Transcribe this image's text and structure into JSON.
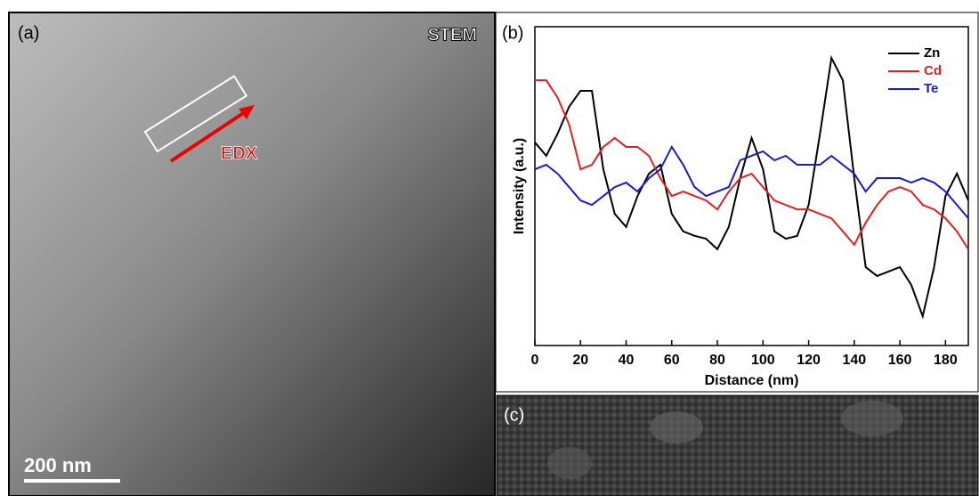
{
  "panels": {
    "a": {
      "label": "(a)",
      "mode": "STEM",
      "arrow_label": "EDX",
      "scale_bar": "200 nm"
    },
    "b": {
      "label": "(b)"
    },
    "c": {
      "label": "(c)"
    }
  },
  "chart_data": {
    "type": "line",
    "x_label": "Distance (nm)",
    "y_label": "Intensity (a.u.)",
    "x": [
      0,
      5,
      10,
      15,
      20,
      25,
      30,
      35,
      40,
      45,
      50,
      55,
      60,
      65,
      70,
      75,
      80,
      85,
      90,
      95,
      100,
      105,
      110,
      115,
      120,
      125,
      130,
      135,
      140,
      145,
      150,
      155,
      160,
      165,
      170,
      175,
      180,
      185,
      190
    ],
    "series": [
      {
        "name": "Zn",
        "color": "#000000",
        "values": [
          63.7,
          59.5,
          66.5,
          74.9,
          79.9,
          79.9,
          55.3,
          41.3,
          37.2,
          46.9,
          53.9,
          56.7,
          41.3,
          35.8,
          34.4,
          33.5,
          30.2,
          37.2,
          52.5,
          65.1,
          55.3,
          35.8,
          33.5,
          34.4,
          44.1,
          66.5,
          90.2,
          83.2,
          52.5,
          24.6,
          21.8,
          23.2,
          24.6,
          19.0,
          9.2,
          24.6,
          46.9,
          53.9,
          45.5
        ]
      },
      {
        "name": "Cd",
        "color": "#e02020",
        "values": [
          83.2,
          83.2,
          77.7,
          69.3,
          55.3,
          56.7,
          62.3,
          65.1,
          62.3,
          62.3,
          59.5,
          52.5,
          46.9,
          48.3,
          46.9,
          45.5,
          42.7,
          48.3,
          52.5,
          53.9,
          49.7,
          45.5,
          44.1,
          42.7,
          42.7,
          41.3,
          39.9,
          35.8,
          31.6,
          38.5,
          44.1,
          48.3,
          49.7,
          48.3,
          44.1,
          42.7,
          39.9,
          35.8,
          30.2
        ]
      },
      {
        "name": "Te",
        "color": "#1a1acc",
        "values": [
          55.3,
          56.7,
          53.9,
          49.7,
          45.5,
          44.1,
          46.9,
          49.7,
          51.1,
          48.3,
          52.5,
          55.3,
          62.3,
          56.7,
          49.7,
          46.9,
          48.3,
          49.7,
          58.1,
          59.5,
          60.9,
          58.1,
          59.5,
          56.7,
          56.7,
          56.7,
          59.5,
          56.7,
          53.9,
          48.3,
          52.5,
          52.5,
          52.5,
          51.1,
          52.5,
          51.1,
          48.3,
          44.1,
          39.9
        ]
      }
    ],
    "xlim": [
      0,
      190
    ],
    "xticks": [
      0,
      20,
      40,
      60,
      80,
      100,
      120,
      140,
      160,
      180
    ],
    "ylim": [
      0,
      100
    ],
    "legend": "upper right"
  }
}
